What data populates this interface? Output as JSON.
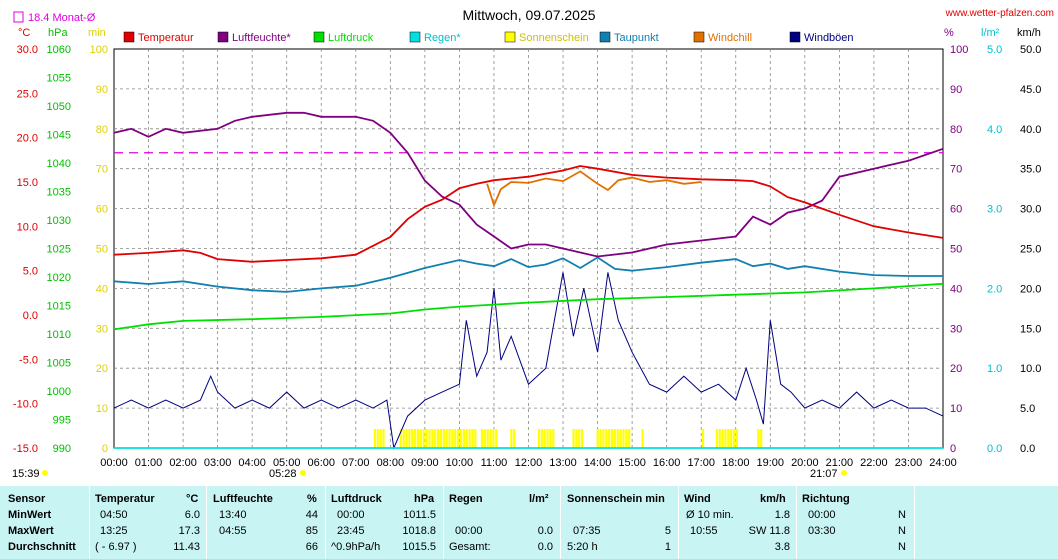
{
  "header": {
    "title": "Mittwoch, 09.07.2025",
    "site": "www.wetter-pfalzen.com",
    "month_avg_label": "18.4 Monat-Ø"
  },
  "legend": [
    {
      "name": "Temperatur",
      "color": "#e00000"
    },
    {
      "name": "Luftfeuchte*",
      "color": "#800080"
    },
    {
      "name": "Luftdruck",
      "color": "#00e000"
    },
    {
      "name": "Regen*",
      "color": "#00e0e0"
    },
    {
      "name": "Sonnenschein",
      "color": "#ffff00"
    },
    {
      "name": "Taupunkt",
      "color": "#1080b0"
    },
    {
      "name": "Windchill",
      "color": "#e07000"
    },
    {
      "name": "Windböen",
      "color": "#000080"
    }
  ],
  "axes": {
    "temp": {
      "unit": "°C",
      "min": -15,
      "max": 30,
      "step": 5,
      "ticks": [
        "30.0",
        "25.0",
        "20.0",
        "15.0",
        "10.0",
        "5.0",
        "0.0",
        "-5.0",
        "-10.0",
        "-15.0"
      ]
    },
    "pressure": {
      "unit": "hPa",
      "min": 990,
      "max": 1060,
      "step": 5,
      "ticks": [
        "1060",
        "1055",
        "1050",
        "1045",
        "1040",
        "1035",
        "1030",
        "1025",
        "1020",
        "1015",
        "1010",
        "1005",
        "1000",
        "995",
        "990"
      ]
    },
    "minutes": {
      "unit": "min",
      "ticks": [
        "100",
        "90",
        "80",
        "70",
        "60",
        "50",
        "40",
        "30",
        "20",
        "10",
        "0"
      ]
    },
    "humidity": {
      "unit": "%",
      "ticks": [
        "100",
        "90",
        "80",
        "70",
        "60",
        "50",
        "40",
        "30",
        "20",
        "10",
        "0"
      ]
    },
    "rain": {
      "unit": "l/m²",
      "ticks": [
        "5.0",
        "4.0",
        "3.0",
        "2.0",
        "1.0",
        "0.0"
      ]
    },
    "wind": {
      "unit": "km/h",
      "ticks": [
        "50.0",
        "45.0",
        "40.0",
        "35.0",
        "30.0",
        "25.0",
        "20.0",
        "15.0",
        "10.0",
        "5.0",
        "0.0"
      ]
    },
    "x_ticks": [
      "00:00",
      "01:00",
      "02:00",
      "03:00",
      "04:00",
      "05:00",
      "06:00",
      "07:00",
      "08:00",
      "09:00",
      "10:00",
      "11:00",
      "12:00",
      "13:00",
      "14:00",
      "15:00",
      "16:00",
      "17:00",
      "18:00",
      "19:00",
      "20:00",
      "21:00",
      "22:00",
      "23:00",
      "24:00"
    ]
  },
  "markers": {
    "left_time": "15:39",
    "sunrise": "05:28",
    "sunset": "21:07"
  },
  "chart_data": {
    "type": "line",
    "title": "Mittwoch, 09.07.2025",
    "x_unit": "hour of day",
    "xlim": [
      0,
      24
    ],
    "grid": true,
    "month_avg_humidity": 74,
    "series": [
      {
        "name": "Temperatur",
        "axis": "temp",
        "color": "#e00000",
        "x": [
          0,
          1,
          2,
          2.5,
          3,
          4,
          5,
          6,
          7,
          7.5,
          8,
          8.5,
          9,
          9.5,
          10,
          10.5,
          11,
          12,
          13,
          13.5,
          14,
          15,
          16,
          17,
          18,
          18.5,
          19,
          19.5,
          20,
          20.5,
          21,
          22,
          23,
          24
        ],
        "y": [
          6.8,
          7.0,
          7.3,
          7.0,
          6.3,
          6.0,
          6.2,
          6.4,
          6.8,
          7.8,
          8.8,
          10.8,
          12.2,
          13.0,
          14.3,
          14.8,
          15.2,
          15.6,
          16.3,
          16.8,
          16.5,
          15.8,
          15.5,
          15.3,
          15.2,
          15.1,
          14.5,
          13.3,
          12.7,
          12.0,
          11.3,
          10.0,
          9.3,
          8.7
        ]
      },
      {
        "name": "Luftfeuchte*",
        "axis": "humidity",
        "color": "#800080",
        "x": [
          0,
          0.5,
          1,
          1.5,
          2,
          3,
          3.5,
          4,
          5,
          5.5,
          6,
          7,
          7.5,
          8,
          8.5,
          9,
          9.5,
          10,
          10.5,
          11,
          11.5,
          12,
          12.5,
          13,
          14,
          15,
          16,
          17,
          18,
          18.5,
          19,
          19.5,
          20,
          20.5,
          21,
          22,
          23,
          24
        ],
        "y": [
          79,
          80,
          78,
          80,
          79,
          80,
          82,
          83,
          84,
          84,
          83,
          83,
          82,
          79,
          74,
          67,
          63,
          61,
          56,
          53,
          50,
          51,
          51,
          50,
          48,
          49,
          51,
          52,
          53,
          58,
          56,
          59,
          60,
          62,
          68,
          70,
          72,
          75
        ]
      },
      {
        "name": "Luftdruck",
        "axis": "pressure",
        "color": "#00e000",
        "x": [
          0,
          1,
          2,
          4,
          6,
          8,
          9,
          10,
          12,
          14,
          16,
          18,
          20,
          22,
          24
        ],
        "y": [
          1010.8,
          1011.7,
          1012.3,
          1012.6,
          1013.0,
          1013.6,
          1014.3,
          1014.8,
          1015.5,
          1016.1,
          1016.5,
          1016.9,
          1017.3,
          1018.0,
          1018.8
        ]
      },
      {
        "name": "Regen*",
        "axis": "rain",
        "color": "#00e0e0",
        "x": [
          0,
          24
        ],
        "y": [
          0,
          0
        ]
      },
      {
        "name": "Taupunkt",
        "axis": "temp",
        "color": "#1080b0",
        "x": [
          0,
          1,
          2,
          3,
          4,
          5,
          6,
          7,
          8,
          9,
          10,
          10.5,
          11,
          11.5,
          12,
          12.5,
          13,
          13.5,
          14,
          14.5,
          15,
          16,
          17,
          18,
          18.5,
          19,
          19.5,
          20,
          21,
          22,
          23,
          24
        ],
        "y": [
          3.8,
          3.5,
          3.8,
          3.2,
          2.8,
          2.6,
          3.0,
          3.3,
          4.2,
          5.3,
          6.2,
          5.8,
          5.5,
          6.3,
          5.4,
          5.7,
          6.4,
          5.3,
          6.5,
          5.2,
          5.0,
          5.4,
          5.9,
          6.3,
          5.5,
          5.8,
          5.2,
          5.5,
          4.9,
          4.5,
          4.4,
          4.4
        ]
      },
      {
        "name": "Windchill",
        "axis": "temp",
        "color": "#e07000",
        "x": [
          10.8,
          11,
          11.2,
          11.5,
          12,
          12.5,
          13,
          13.5,
          14,
          14.3,
          14.6,
          15,
          15.5,
          16,
          16.5,
          17
        ],
        "y": [
          14.8,
          12.4,
          14.2,
          15.0,
          14.9,
          15.4,
          15.1,
          16.2,
          14.8,
          14.1,
          15.2,
          15.5,
          15.0,
          15.2,
          14.8,
          15.0
        ]
      },
      {
        "name": "Windböen",
        "axis": "wind",
        "color": "#000080",
        "x": [
          0,
          0.5,
          1,
          1.5,
          2,
          2.5,
          2.8,
          3,
          3.5,
          4,
          4.5,
          5,
          5.5,
          6,
          6.5,
          7,
          7.5,
          7.9,
          8.1,
          8.5,
          9,
          9.5,
          10,
          10.2,
          10.5,
          10.8,
          11,
          11.2,
          11.5,
          12,
          12.5,
          13,
          13.3,
          13.6,
          14,
          14.3,
          14.6,
          15,
          15.5,
          16,
          16.5,
          17,
          17.5,
          18,
          18.3,
          18.6,
          18.8,
          19,
          19.3,
          19.6,
          20,
          20.5,
          21,
          21.5,
          22,
          22.5,
          23,
          23.5,
          24
        ],
        "y": [
          5,
          6,
          5,
          6,
          5,
          6,
          9,
          7,
          5,
          6,
          5,
          7,
          5,
          6,
          5,
          6,
          5,
          6,
          0,
          4,
          6,
          7,
          8,
          16,
          9,
          12,
          20,
          11,
          14,
          8,
          10,
          22,
          14,
          20,
          12,
          22,
          16,
          12,
          8,
          7,
          9,
          7,
          8,
          6,
          10,
          6,
          3,
          16,
          8,
          7,
          5,
          6,
          5,
          7,
          5,
          6,
          5,
          5,
          4
        ]
      }
    ],
    "sunshine_intervals": [
      [
        7.55,
        7.8
      ],
      [
        8.3,
        10.5
      ],
      [
        10.65,
        11.1
      ],
      [
        11.5,
        11.6
      ],
      [
        12.3,
        12.75
      ],
      [
        13.3,
        13.6
      ],
      [
        14.0,
        14.95
      ],
      [
        15.3,
        15.35
      ],
      [
        17.05,
        17.1
      ],
      [
        17.45,
        18.1
      ],
      [
        18.65,
        18.75
      ]
    ]
  },
  "stats": {
    "headers": {
      "sensor": "Sensor",
      "temp": "Temperatur",
      "temp_unit": "°C",
      "hum": "Luftfeuchte",
      "hum_unit": "%",
      "press": "Luftdruck",
      "press_unit": "hPa",
      "rain": "Regen",
      "rain_unit": "l/m²",
      "sun": "Sonnenschein min",
      "wind": "Wind",
      "wind_unit": "km/h",
      "dir": "Richtung"
    },
    "rows": [
      {
        "label": "MinWert",
        "temp_time": "04:50",
        "temp": "6.0",
        "hum_time": "13:40",
        "hum": "44",
        "press_time": "00:00",
        "press": "1011.5",
        "rain_time": "",
        "rain": "",
        "sun_time": "",
        "sun": "",
        "wind_time": "Ø 10 min.",
        "wind": "1.8",
        "dir_time": "00:00",
        "dir": "N"
      },
      {
        "label": "MaxWert",
        "temp_time": "13:25",
        "temp": "17.3",
        "hum_time": "04:55",
        "hum": "85",
        "press_time": "23:45",
        "press": "1018.8",
        "rain_time": "00:00",
        "rain": "0.0",
        "sun_time": "07:35",
        "sun": "5",
        "wind_time": "10:55",
        "wind": "SW 11.8",
        "dir_time": "03:30",
        "dir": "N"
      },
      {
        "label": "Durchschnitt",
        "temp_time": "( - 6.97 )",
        "temp": "11.43",
        "hum_time": "",
        "hum": "66",
        "press_time": "^0.9hPa/h",
        "press": "1015.5",
        "rain_time": "Gesamt:",
        "rain": "0.0",
        "sun_time": "5:20 h",
        "sun": "1",
        "wind_time": "",
        "wind": "3.8",
        "dir_time": "",
        "dir": "N"
      }
    ]
  }
}
